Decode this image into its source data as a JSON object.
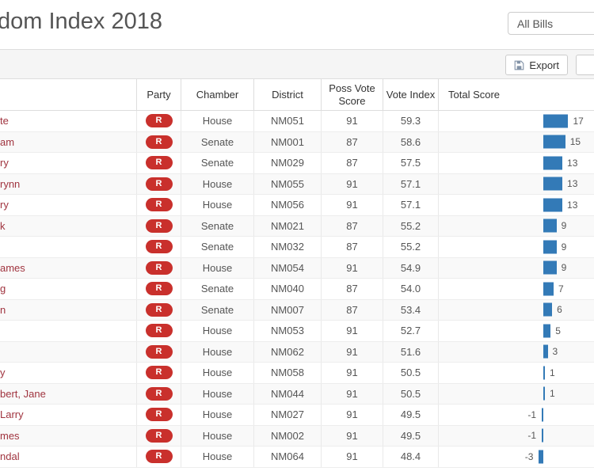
{
  "page": {
    "title": "dom Index 2018"
  },
  "filter": {
    "selected": "All Bills"
  },
  "toolbar": {
    "export_label": "Export",
    "export_icon": "save-floppy-icon",
    "partial_button_label": ""
  },
  "colors": {
    "party_badge": "#c9302c",
    "score_bar": "#337ab7",
    "name_link": "#a0343f",
    "toolbar_bg": "#f5f5f5"
  },
  "table": {
    "columns": {
      "name": "",
      "party": "Party",
      "chamber": "Chamber",
      "district": "District",
      "poss_vote_score": "Poss Vote Score",
      "vote_index": "Vote Index",
      "total_score": "Total Score"
    },
    "rows": [
      {
        "name": "te",
        "party": "R",
        "chamber": "House",
        "district": "NM051",
        "poss_vote_score": "91",
        "vote_index": "59.3",
        "total_score": 17
      },
      {
        "name": "am",
        "party": "R",
        "chamber": "Senate",
        "district": "NM001",
        "poss_vote_score": "87",
        "vote_index": "58.6",
        "total_score": 15
      },
      {
        "name": "ry",
        "party": "R",
        "chamber": "Senate",
        "district": "NM029",
        "poss_vote_score": "87",
        "vote_index": "57.5",
        "total_score": 13
      },
      {
        "name": "rynn",
        "party": "R",
        "chamber": "House",
        "district": "NM055",
        "poss_vote_score": "91",
        "vote_index": "57.1",
        "total_score": 13
      },
      {
        "name": "ry",
        "party": "R",
        "chamber": "House",
        "district": "NM056",
        "poss_vote_score": "91",
        "vote_index": "57.1",
        "total_score": 13
      },
      {
        "name": "k",
        "party": "R",
        "chamber": "Senate",
        "district": "NM021",
        "poss_vote_score": "87",
        "vote_index": "55.2",
        "total_score": 9
      },
      {
        "name": "",
        "party": "R",
        "chamber": "Senate",
        "district": "NM032",
        "poss_vote_score": "87",
        "vote_index": "55.2",
        "total_score": 9
      },
      {
        "name": "ames",
        "party": "R",
        "chamber": "House",
        "district": "NM054",
        "poss_vote_score": "91",
        "vote_index": "54.9",
        "total_score": 9
      },
      {
        "name": "g",
        "party": "R",
        "chamber": "Senate",
        "district": "NM040",
        "poss_vote_score": "87",
        "vote_index": "54.0",
        "total_score": 7
      },
      {
        "name": "n",
        "party": "R",
        "chamber": "Senate",
        "district": "NM007",
        "poss_vote_score": "87",
        "vote_index": "53.4",
        "total_score": 6
      },
      {
        "name": "",
        "party": "R",
        "chamber": "House",
        "district": "NM053",
        "poss_vote_score": "91",
        "vote_index": "52.7",
        "total_score": 5
      },
      {
        "name": "",
        "party": "R",
        "chamber": "House",
        "district": "NM062",
        "poss_vote_score": "91",
        "vote_index": "51.6",
        "total_score": 3
      },
      {
        "name": "y",
        "party": "R",
        "chamber": "House",
        "district": "NM058",
        "poss_vote_score": "91",
        "vote_index": "50.5",
        "total_score": 1
      },
      {
        "name": "bert, Jane",
        "party": "R",
        "chamber": "House",
        "district": "NM044",
        "poss_vote_score": "91",
        "vote_index": "50.5",
        "total_score": 1
      },
      {
        "name": "Larry",
        "party": "R",
        "chamber": "House",
        "district": "NM027",
        "poss_vote_score": "91",
        "vote_index": "49.5",
        "total_score": -1
      },
      {
        "name": "mes",
        "party": "R",
        "chamber": "House",
        "district": "NM002",
        "poss_vote_score": "91",
        "vote_index": "49.5",
        "total_score": -1
      },
      {
        "name": "ndal",
        "party": "R",
        "chamber": "House",
        "district": "NM064",
        "poss_vote_score": "91",
        "vote_index": "48.4",
        "total_score": -3
      }
    ]
  }
}
